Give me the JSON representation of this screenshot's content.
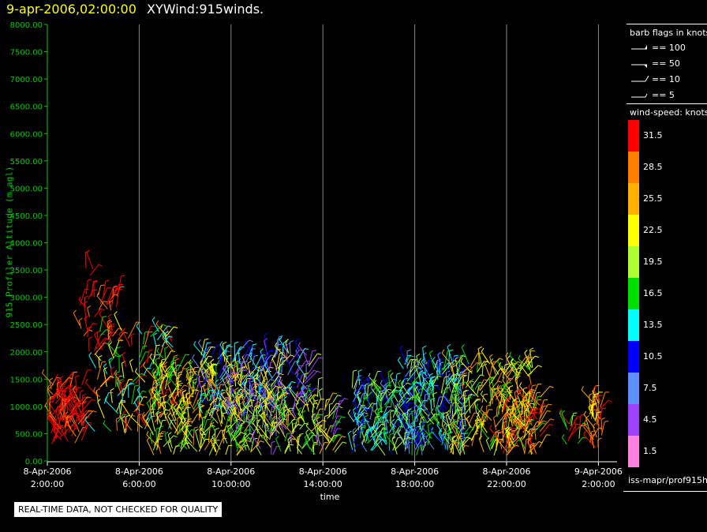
{
  "header": {
    "date_label": "9-apr-2006,02:00:00",
    "title": "XYWind:915winds."
  },
  "chart_data": {
    "type": "scatter",
    "ylabel": "915 Profiler Altitude (m agl)",
    "xlabel": "time",
    "ylim": [
      0,
      8000
    ],
    "y_ticks": [
      "0.00",
      "500.00",
      "1000.00",
      "1500.00",
      "2000.00",
      "2500.00",
      "3000.00",
      "3500.00",
      "4000.00",
      "4500.00",
      "5000.00",
      "5500.00",
      "6000.00",
      "6500.00",
      "7000.00",
      "7500.00",
      "8000.00"
    ],
    "x_range_hours": [
      0,
      24.2
    ],
    "x_ticks": [
      {
        "hour": 0,
        "line1": "8-Apr-2006",
        "line2": "2:00:00"
      },
      {
        "hour": 4,
        "line1": "8-Apr-2006",
        "line2": "6:00:00"
      },
      {
        "hour": 8,
        "line1": "8-Apr-2006",
        "line2": "10:00:00"
      },
      {
        "hour": 12,
        "line1": "8-Apr-2006",
        "line2": "14:00:00"
      },
      {
        "hour": 16,
        "line1": "8-Apr-2006",
        "line2": "18:00:00"
      },
      {
        "hour": 20,
        "line1": "8-Apr-2006",
        "line2": "22:00:00"
      },
      {
        "hour": 24,
        "line1": "9-Apr-2006",
        "line2": "2:00:00"
      }
    ],
    "grid": "vertical lines at labeled times",
    "colors": {
      "axis": "#00cc00",
      "grid": "#888888"
    }
  },
  "legend": {
    "barb_title": "barb flags in knots",
    "barbs": [
      {
        "label": "== 100"
      },
      {
        "label": "== 50"
      },
      {
        "label": "== 10"
      },
      {
        "label": "== 5"
      }
    ],
    "speed_title": "wind-speed: knots",
    "speed_bins": [
      {
        "label": "31.5",
        "color": "#ff0000"
      },
      {
        "label": "28.5",
        "color": "#ff8000"
      },
      {
        "label": "25.5",
        "color": "#ffb000"
      },
      {
        "label": "22.5",
        "color": "#ffff00"
      },
      {
        "label": "19.5",
        "color": "#b0ff30"
      },
      {
        "label": "16.5",
        "color": "#00e000"
      },
      {
        "label": "13.5",
        "color": "#00ffff"
      },
      {
        "label": "10.5",
        "color": "#0000ff"
      },
      {
        "label": "7.5",
        "color": "#6090ff"
      },
      {
        "label": "4.5",
        "color": "#a040ff"
      },
      {
        "label": "1.5",
        "color": "#ff80e0"
      }
    ]
  },
  "footer": {
    "product_id": "iss-mapr/prof915h",
    "qc_note": "REAL-TIME DATA, NOT CHECKED FOR QUALITY"
  },
  "clusters": [
    {
      "start_hour": 0.1,
      "end_hour": 1.6,
      "ymin": 300,
      "ymax": 1400,
      "colors": [
        "#ff0000",
        "#ff0000",
        "#ff8000"
      ],
      "count": 110
    },
    {
      "start_hour": 1.4,
      "end_hour": 3.2,
      "ymin": 2000,
      "ymax": 3100,
      "colors": [
        "#ff0000",
        "#ff0000",
        "#ff8000"
      ],
      "count": 45
    },
    {
      "start_hour": 2.0,
      "end_hour": 5.5,
      "ymin": 500,
      "ymax": 2400,
      "colors": [
        "#ff0000",
        "#ff8000",
        "#ffff00",
        "#00e000",
        "#00ffff"
      ],
      "count": 140
    },
    {
      "start_hour": 4.5,
      "end_hour": 8.5,
      "ymin": 100,
      "ymax": 1700,
      "colors": [
        "#ffff00",
        "#b0ff30",
        "#ffb000",
        "#00e000",
        "#ff8000"
      ],
      "count": 260
    },
    {
      "start_hour": 6.5,
      "end_hour": 11.5,
      "ymin": 800,
      "ymax": 2000,
      "colors": [
        "#0000ff",
        "#6090ff",
        "#a040ff",
        "#00ffff",
        "#ffff00"
      ],
      "count": 220
    },
    {
      "start_hour": 8.0,
      "end_hour": 12.6,
      "ymin": 100,
      "ymax": 1200,
      "colors": [
        "#ffff00",
        "#b0ff30",
        "#00e000",
        "#ffb000",
        "#a040ff"
      ],
      "count": 200
    },
    {
      "start_hour": 13.2,
      "end_hour": 15.8,
      "ymin": 100,
      "ymax": 1400,
      "colors": [
        "#0000ff",
        "#6090ff",
        "#00ffff",
        "#00e000",
        "#b0ff30"
      ],
      "count": 160
    },
    {
      "start_hour": 15.5,
      "end_hour": 18.2,
      "ymin": 100,
      "ymax": 1800,
      "colors": [
        "#0000ff",
        "#00ffff",
        "#00e000",
        "#6090ff",
        "#b0ff30"
      ],
      "count": 220
    },
    {
      "start_hour": 17.5,
      "end_hour": 21.2,
      "ymin": 100,
      "ymax": 1800,
      "colors": [
        "#ffff00",
        "#b0ff30",
        "#ff8000",
        "#ffb000",
        "#00e000"
      ],
      "count": 210
    },
    {
      "start_hour": 19.8,
      "end_hour": 21.5,
      "ymin": 100,
      "ymax": 1200,
      "colors": [
        "#ff0000",
        "#ff8000",
        "#ffb000",
        "#ffff00"
      ],
      "count": 90
    },
    {
      "start_hour": 22.6,
      "end_hour": 23.2,
      "ymin": 300,
      "ymax": 700,
      "colors": [
        "#00e000",
        "#b0ff30",
        "#ff0000"
      ],
      "count": 14
    },
    {
      "start_hour": 23.6,
      "end_hour": 24.2,
      "ymin": 200,
      "ymax": 1100,
      "colors": [
        "#ff8000",
        "#ffb000",
        "#ffff00",
        "#ff0000"
      ],
      "count": 40
    },
    {
      "start_hour": 1.6,
      "end_hour": 2.0,
      "ymin": 3400,
      "ymax": 3750,
      "colors": [
        "#ff0000"
      ],
      "count": 3
    }
  ]
}
